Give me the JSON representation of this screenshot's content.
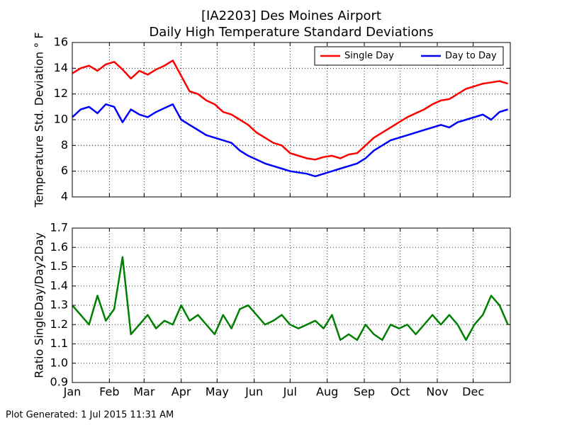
{
  "title": [
    "[IA2203] Des Moines Airport",
    "Daily High Temperature Standard Deviations"
  ],
  "footer": "Plot Generated: 1 Jul 2015 11:31 AM",
  "chart_data": [
    {
      "type": "line",
      "ylabel": "Temperature Std. Deviation ° F",
      "x": [
        1,
        8,
        15,
        22,
        29,
        36,
        43,
        50,
        57,
        64,
        71,
        78,
        85,
        92,
        99,
        106,
        113,
        120,
        127,
        134,
        141,
        148,
        155,
        162,
        169,
        176,
        183,
        190,
        197,
        204,
        211,
        218,
        225,
        232,
        239,
        246,
        253,
        260,
        267,
        274,
        281,
        288,
        295,
        302,
        309,
        316,
        323,
        330,
        337,
        344,
        351,
        358,
        365
      ],
      "series": [
        {
          "name": "Single Day",
          "color": "#ff0000",
          "values": [
            13.6,
            14.0,
            14.2,
            13.8,
            14.3,
            14.5,
            13.9,
            13.2,
            13.8,
            13.5,
            13.9,
            14.2,
            14.6,
            13.4,
            12.2,
            12.0,
            11.5,
            11.2,
            10.6,
            10.4,
            10.0,
            9.6,
            9.0,
            8.6,
            8.2,
            8.0,
            7.4,
            7.2,
            7.0,
            6.9,
            7.1,
            7.2,
            7.0,
            7.3,
            7.4,
            8.0,
            8.6,
            9.0,
            9.4,
            9.8,
            10.2,
            10.5,
            10.8,
            11.2,
            11.5,
            11.6,
            12.0,
            12.4,
            12.6,
            12.8,
            12.9,
            13.0,
            12.8
          ]
        },
        {
          "name": "Day to Day",
          "color": "#0000ff",
          "values": [
            10.2,
            10.8,
            11.0,
            10.5,
            11.2,
            11.0,
            9.8,
            10.8,
            10.4,
            10.2,
            10.6,
            10.9,
            11.2,
            10.0,
            9.6,
            9.2,
            8.8,
            8.6,
            8.4,
            8.2,
            7.6,
            7.2,
            6.9,
            6.6,
            6.4,
            6.2,
            6.0,
            5.9,
            5.8,
            5.6,
            5.8,
            6.0,
            6.2,
            6.4,
            6.6,
            7.0,
            7.6,
            8.0,
            8.4,
            8.6,
            8.8,
            9.0,
            9.2,
            9.4,
            9.6,
            9.4,
            9.8,
            10.0,
            10.2,
            10.4,
            10.0,
            10.6,
            10.8
          ]
        }
      ],
      "xlim": [
        1,
        367
      ],
      "ylim": [
        4,
        16
      ],
      "yticks": [
        4,
        6,
        8,
        10,
        12,
        14,
        16
      ],
      "grid": true,
      "legend": "upper right"
    },
    {
      "type": "line",
      "ylabel": "Ratio SingleDay/Day2Day",
      "x": [
        1,
        8,
        15,
        22,
        29,
        36,
        43,
        50,
        57,
        64,
        71,
        78,
        85,
        92,
        99,
        106,
        113,
        120,
        127,
        134,
        141,
        148,
        155,
        162,
        169,
        176,
        183,
        190,
        197,
        204,
        211,
        218,
        225,
        232,
        239,
        246,
        253,
        260,
        267,
        274,
        281,
        288,
        295,
        302,
        309,
        316,
        323,
        330,
        337,
        344,
        351,
        358,
        365
      ],
      "series": [
        {
          "color": "#008000",
          "values": [
            1.3,
            1.25,
            1.2,
            1.35,
            1.22,
            1.28,
            1.55,
            1.15,
            1.2,
            1.25,
            1.18,
            1.22,
            1.2,
            1.3,
            1.22,
            1.25,
            1.2,
            1.15,
            1.25,
            1.18,
            1.28,
            1.3,
            1.25,
            1.2,
            1.22,
            1.25,
            1.2,
            1.18,
            1.2,
            1.22,
            1.18,
            1.25,
            1.12,
            1.15,
            1.12,
            1.2,
            1.15,
            1.12,
            1.2,
            1.18,
            1.2,
            1.15,
            1.2,
            1.25,
            1.2,
            1.25,
            1.2,
            1.12,
            1.2,
            1.25,
            1.35,
            1.3,
            1.2
          ]
        }
      ],
      "xlim": [
        1,
        367
      ],
      "ylim": [
        0.9,
        1.7
      ],
      "yticks": [
        0.9,
        {
          "value": 1,
          "label": "1.0"
        },
        1.1,
        1.2,
        1.3,
        1.4,
        1.5,
        1.6,
        1.7
      ],
      "xticks": [
        {
          "value": 1,
          "label": "Jan"
        },
        {
          "value": 32,
          "label": "Feb"
        },
        {
          "value": 61,
          "label": "Mar"
        },
        {
          "value": 92,
          "label": "Apr"
        },
        {
          "value": 122,
          "label": "May"
        },
        {
          "value": 153,
          "label": "Jun"
        },
        {
          "value": 183,
          "label": "Jul"
        },
        {
          "value": 214,
          "label": "Aug"
        },
        {
          "value": 245,
          "label": "Sep"
        },
        {
          "value": 275,
          "label": "Oct"
        },
        {
          "value": 306,
          "label": "Nov"
        },
        {
          "value": 336,
          "label": "Dec"
        }
      ],
      "grid": true
    }
  ]
}
